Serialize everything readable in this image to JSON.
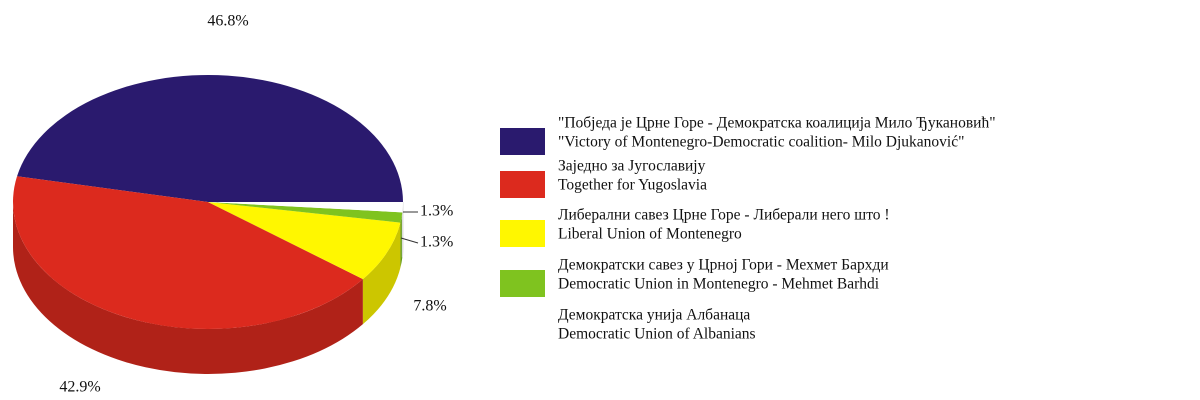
{
  "chart_data": {
    "type": "pie",
    "categories": [
      "\"Побједа је Црне Горе - Демократска коалиција Мило Ђукановић\"",
      "Заједно за Југославију",
      "Либерални савез Црне Горе - Либерали него што !",
      "Демократски савез у Црној Гори - Мехмет Бархди",
      "Демократска унија Албанаца"
    ],
    "category_translations": [
      "\"Victory of Montenegro-Democratic coalition- Milo Djukanović\"",
      "Together for Yugoslavia",
      "Liberal Union of Montenegro",
      "Democratic Union in Montenegro - Mehmet Barhdi",
      "Democratic Union of Albanians"
    ],
    "values": [
      46.8,
      42.9,
      7.8,
      1.3,
      1.3
    ],
    "value_labels": [
      "46.8%",
      "42.9%",
      "7.8%",
      "1.3%",
      "1.3%"
    ],
    "colors": [
      "#2a1a6e",
      "#dc2a1e",
      "#fff700",
      "#7fc31f",
      "#ffffff"
    ],
    "legend": "right"
  }
}
